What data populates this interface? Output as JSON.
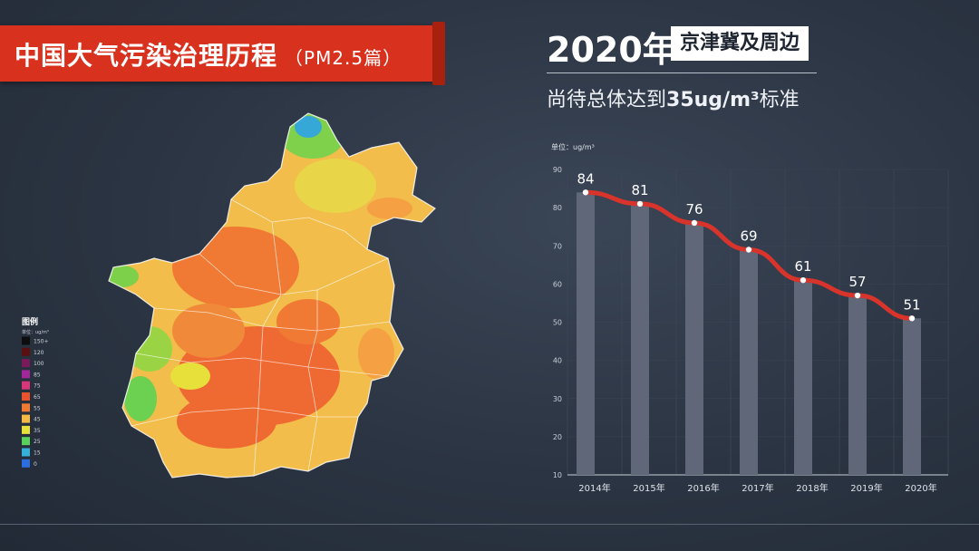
{
  "header": {
    "title": "中国大气污染治理历程",
    "title_suffix": "（PM2.5篇）",
    "year": "2020年",
    "region": "京津冀及周边",
    "subtitle_pre": "尚待总体达到",
    "subtitle_value": "35ug/m³",
    "subtitle_post": "标准"
  },
  "legend": {
    "title": "图例",
    "unit": "单位：ug/m³",
    "items": [
      {
        "label": "150+",
        "color": "#0d0d0d"
      },
      {
        "label": "120",
        "color": "#5a1010"
      },
      {
        "label": "100",
        "color": "#7a1a5a"
      },
      {
        "label": "85",
        "color": "#a0289a"
      },
      {
        "label": "75",
        "color": "#d8367a"
      },
      {
        "label": "65",
        "color": "#e8532e"
      },
      {
        "label": "55",
        "color": "#f07a34"
      },
      {
        "label": "45",
        "color": "#f5b844"
      },
      {
        "label": "35",
        "color": "#e8e03a"
      },
      {
        "label": "25",
        "color": "#58d25a"
      },
      {
        "label": "15",
        "color": "#35b0d8"
      },
      {
        "label": "0",
        "color": "#2b6ee0"
      }
    ]
  },
  "chart_data": {
    "type": "bar",
    "unit_label": "单位：ug/m³",
    "categories": [
      "2014年",
      "2015年",
      "2016年",
      "2017年",
      "2018年",
      "2019年",
      "2020年"
    ],
    "values": [
      84,
      81,
      76,
      69,
      61,
      57,
      51
    ],
    "ylim": [
      10,
      90
    ],
    "yticks": [
      10,
      20,
      30,
      40,
      50,
      60,
      70,
      80,
      90
    ],
    "line_overlay": true,
    "colors": {
      "bar": "#5f6778",
      "line": "#d9342b",
      "marker": "#ffffff"
    }
  }
}
